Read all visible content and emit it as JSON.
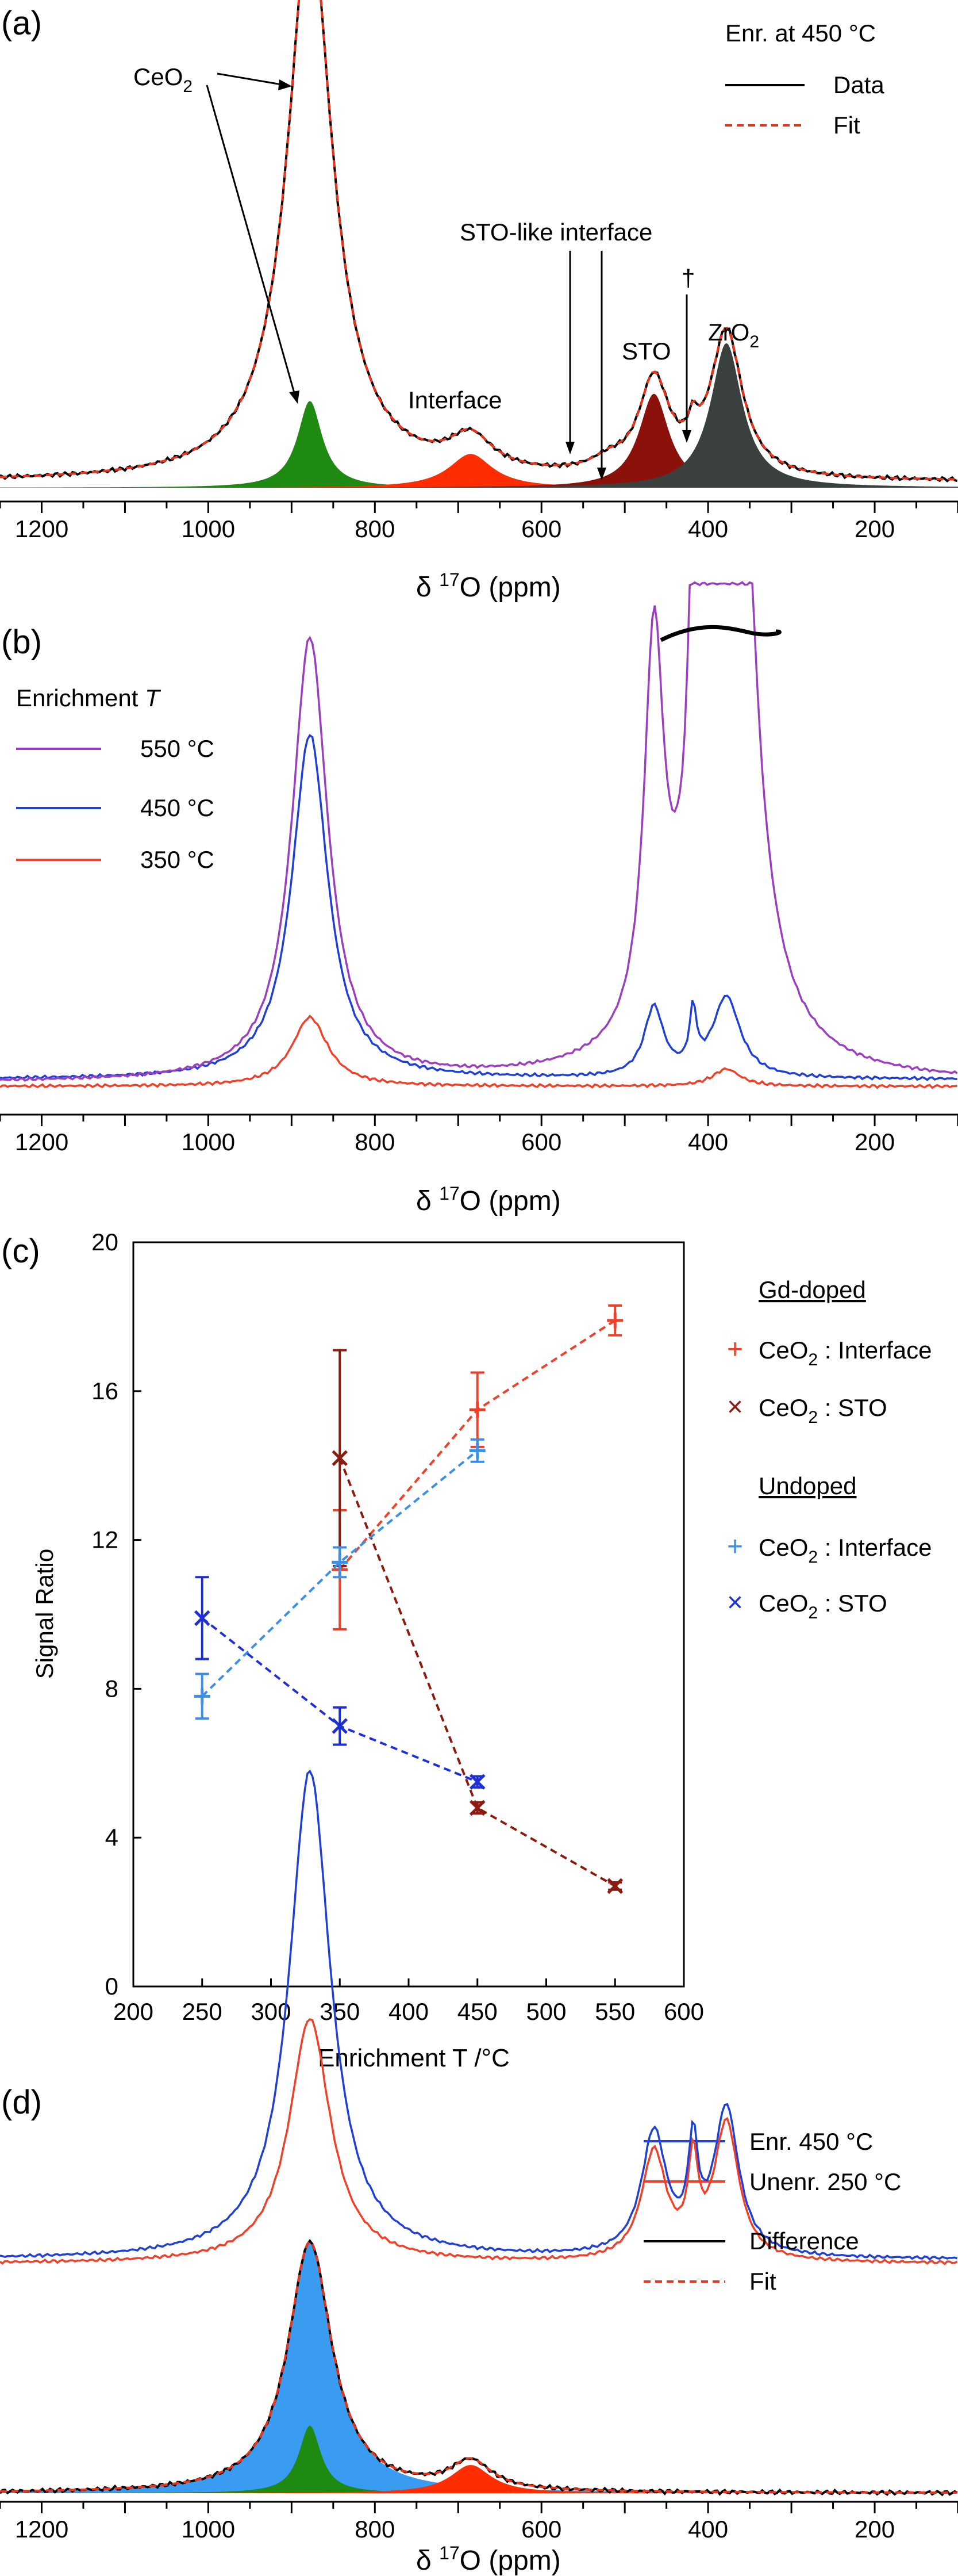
{
  "figure": {
    "panel_a": {
      "panel_label": "(a)",
      "legend_title": "Enr. at 450 °C",
      "legend": [
        {
          "name": "Data",
          "style": "solid",
          "color": "#000000"
        },
        {
          "name": "Fit",
          "style": "dashed",
          "color": "#e8341c"
        }
      ],
      "annotations": {
        "ceo2": "CeO",
        "ceo2_sub": "2",
        "interface": "Interface",
        "sto_like": "STO-like interface",
        "sto": "STO",
        "dagger": "†",
        "zro2": "ZrO",
        "zro2_sub": "2"
      }
    },
    "panel_b": {
      "panel_label": "(b)",
      "legend_title": "Enrichment ",
      "legend_title_italic": "T",
      "legend": [
        {
          "name": "550 °C",
          "color": "#9b3fbf"
        },
        {
          "name": "450 °C",
          "color": "#1f3fd6"
        },
        {
          "name": "350 °C",
          "color": "#f0402a"
        }
      ]
    },
    "panel_c": {
      "panel_label": "(c)",
      "group_gd": "Gd-doped",
      "group_undoped": "Undoped",
      "legend": [
        {
          "marker": "+",
          "name": "CeO",
          "sub": "2",
          "rest": " : Interface",
          "color": "#f0402a"
        },
        {
          "marker": "×",
          "name": "CeO",
          "sub": "2",
          "rest": " : STO",
          "color": "#8b1a10"
        },
        {
          "marker": "+",
          "name": "CeO",
          "sub": "2",
          "rest": " : Interface",
          "color": "#3c8fe6"
        },
        {
          "marker": "×",
          "name": "CeO",
          "sub": "2",
          "rest": " : STO",
          "color": "#1f2fd6"
        }
      ]
    },
    "panel_d": {
      "panel_label": "(d)",
      "legend_top": [
        {
          "name": "Enr. 450 °C",
          "color": "#1f3fd6"
        },
        {
          "name": "Unenr. 250 °C",
          "color": "#f0402a"
        }
      ],
      "legend_bottom": [
        {
          "name": "Difference",
          "style": "solid",
          "color": "#000000"
        },
        {
          "name": "Fit",
          "style": "dashed",
          "color": "#e8341c"
        }
      ]
    },
    "nmr_axis": {
      "label": "δ ",
      "label_sup": "17",
      "label_rest": "O (ppm)",
      "ticks": [
        "1200",
        "1000",
        "800",
        "600",
        "400",
        "200"
      ]
    }
  },
  "chart_data": [
    {
      "type": "line",
      "panel": "a",
      "title": "",
      "xlabel": "δ 17O (ppm)",
      "xlim": [
        1250,
        100
      ],
      "xticks": [
        1200,
        1000,
        800,
        600,
        400,
        200
      ],
      "series": [
        {
          "name": "Data",
          "color": "#000000",
          "style": "solid"
        },
        {
          "name": "Fit",
          "color": "#e8341c",
          "style": "dashed"
        }
      ],
      "fit_components": [
        {
          "name": "CeO2 (broad)",
          "center": 878,
          "height": 1.0,
          "width": 36,
          "color": "none"
        },
        {
          "name": "CeO2",
          "center": 878,
          "height": 0.18,
          "width": 18,
          "color": "#1e8a12"
        },
        {
          "name": "Interface",
          "center": 685,
          "height": 0.07,
          "width": 32,
          "color": "#ff2d00"
        },
        {
          "name": "STO-like interface",
          "center": 520,
          "height": 0.022,
          "width": 25,
          "color": "#c52ec6"
        },
        {
          "name": "STO",
          "center": 465,
          "height": 0.195,
          "width": 22,
          "color": "#8a120a"
        },
        {
          "name": "†",
          "center": 418,
          "height": 0.05,
          "width": 7,
          "color": "#1a3fe0"
        },
        {
          "name": "ZrO2",
          "center": 378,
          "height": 0.3,
          "width": 23,
          "color": "#39403d"
        }
      ]
    },
    {
      "type": "line",
      "panel": "b",
      "title": "",
      "xlabel": "δ 17O (ppm)",
      "xlim": [
        1250,
        100
      ],
      "xticks": [
        1200,
        1000,
        800,
        600,
        400,
        200
      ],
      "series": [
        {
          "name": "550 °C",
          "color": "#9b3fbf",
          "peaks": [
            {
              "center": 878,
              "height": 0.77
            },
            {
              "center": 465,
              "height": 0.67
            },
            {
              "center": 418,
              "height": 0.55
            },
            {
              "center": 378,
              "height": "off-scale"
            }
          ]
        },
        {
          "name": "450 °C",
          "color": "#1f3fd6",
          "peaks": [
            {
              "center": 878,
              "height": 0.6
            },
            {
              "center": 465,
              "height": 0.12
            },
            {
              "center": 418,
              "height": 0.1
            },
            {
              "center": 378,
              "height": 0.14
            }
          ]
        },
        {
          "name": "350 °C",
          "color": "#f0402a",
          "peaks": [
            {
              "center": 878,
              "height": 0.12
            },
            {
              "center": 378,
              "height": 0.03
            }
          ]
        }
      ]
    },
    {
      "type": "scatter",
      "panel": "c",
      "title": "",
      "xlabel": "Enrichment  T /°C",
      "ylabel": "Signal Ratio",
      "xlim": [
        200,
        600
      ],
      "ylim": [
        0,
        20
      ],
      "xticks": [
        200,
        250,
        300,
        350,
        400,
        450,
        500,
        550,
        600
      ],
      "yticks": [
        0,
        4,
        8,
        12,
        16,
        20
      ],
      "series": [
        {
          "name": "Gd-doped CeO2 : Interface",
          "marker": "+",
          "color": "#f0402a",
          "x": [
            350,
            450,
            550
          ],
          "y": [
            11.2,
            15.5,
            17.9
          ],
          "err": [
            1.6,
            1.0,
            0.4
          ]
        },
        {
          "name": "Gd-doped CeO2 : STO",
          "marker": "x",
          "color": "#8b1a10",
          "x": [
            350,
            450,
            550
          ],
          "y": [
            14.2,
            4.8,
            2.7
          ],
          "err": [
            2.9,
            0.15,
            0.1
          ]
        },
        {
          "name": "Undoped CeO2 : Interface",
          "marker": "+",
          "color": "#3c8fe6",
          "x": [
            250,
            350,
            450
          ],
          "y": [
            7.8,
            11.4,
            14.4
          ],
          "err": [
            0.6,
            0.4,
            0.3
          ]
        },
        {
          "name": "Undoped CeO2 : STO",
          "marker": "x",
          "color": "#1f2fd6",
          "x": [
            250,
            350,
            450
          ],
          "y": [
            9.9,
            7.0,
            5.5
          ],
          "err": [
            1.1,
            0.5,
            0.15
          ]
        }
      ]
    },
    {
      "type": "line",
      "panel": "d",
      "title": "",
      "xlabel": "δ 17O (ppm)",
      "xlim": [
        1250,
        100
      ],
      "xticks": [
        1200,
        1000,
        800,
        600,
        400,
        200
      ],
      "series": [
        {
          "name": "Enr. 450 °C",
          "color": "#1f3fd6",
          "peaks": [
            {
              "center": 878,
              "height": 1.0
            },
            {
              "center": 465,
              "height": 0.25
            },
            {
              "center": 418,
              "height": 0.2
            },
            {
              "center": 378,
              "height": 0.3
            }
          ]
        },
        {
          "name": "Unenr. 250 °C",
          "color": "#f0402a",
          "peaks": [
            {
              "center": 878,
              "height": 0.5
            },
            {
              "center": 465,
              "height": 0.22
            },
            {
              "center": 418,
              "height": 0.18
            },
            {
              "center": 378,
              "height": 0.28
            }
          ]
        },
        {
          "name": "Difference",
          "color": "#000000",
          "style": "solid"
        },
        {
          "name": "Fit",
          "color": "#e8341c",
          "style": "dashed"
        }
      ],
      "fit_components": [
        {
          "name": "CeO2 (broad)",
          "center": 878,
          "height": 0.89,
          "width": 32,
          "color": "#3a9cf0"
        },
        {
          "name": "CeO2",
          "center": 878,
          "height": 0.24,
          "width": 16,
          "color": "#1e8a12"
        },
        {
          "name": "Interface",
          "center": 685,
          "height": 0.1,
          "width": 30,
          "color": "#ff2d00"
        }
      ]
    }
  ]
}
